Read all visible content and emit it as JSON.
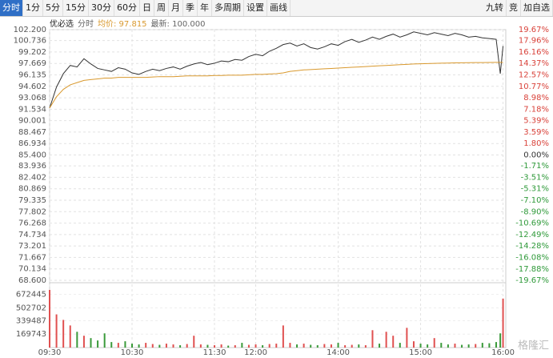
{
  "toolbar": {
    "left": [
      "分时",
      "1分",
      "5分",
      "15分",
      "30分",
      "60分",
      "日",
      "周",
      "月",
      "季",
      "年",
      "多周期",
      "设置",
      "画线"
    ],
    "right": [
      "九转",
      "竞",
      "加自选"
    ]
  },
  "header": {
    "name": "优必选",
    "mode": "分时",
    "avg": "均价: 97.815",
    "last": "最新: 100.000"
  },
  "brand": "格隆汇",
  "chart_data": {
    "type": "line",
    "grid": true,
    "x": [
      0,
      5,
      10,
      15,
      20,
      25,
      30,
      35,
      40,
      45,
      50,
      55,
      60,
      65,
      70,
      75,
      80,
      85,
      90,
      95,
      100,
      105,
      110,
      115,
      120,
      125,
      130,
      135,
      140,
      145,
      150,
      155,
      160,
      165,
      170,
      175,
      180,
      185,
      190,
      195,
      200,
      205,
      210,
      215,
      220,
      225,
      230,
      235,
      240,
      245,
      250,
      255,
      260,
      265,
      270,
      275,
      280,
      285,
      290,
      295,
      300,
      305,
      310,
      315,
      320,
      325,
      328,
      330
    ],
    "xlim": [
      0,
      332
    ],
    "xticks": [
      {
        "value": 0,
        "label": "09:30"
      },
      {
        "value": 60,
        "label": "10:30"
      },
      {
        "value": 120,
        "label": "11:30"
      },
      {
        "value": 150,
        "label": "12:00"
      },
      {
        "value": 210,
        "label": "14:00"
      },
      {
        "value": 270,
        "label": "15:00"
      },
      {
        "value": 330,
        "label": "16:00"
      }
    ],
    "ylim": [
      68.6,
      102.2
    ],
    "yticks": [
      {
        "value": 102.2,
        "label": "102.200"
      },
      {
        "value": 100.736,
        "label": "100.736"
      },
      {
        "value": 99.202,
        "label": "99.202"
      },
      {
        "value": 97.669,
        "label": "97.669"
      },
      {
        "value": 96.135,
        "label": "96.135"
      },
      {
        "value": 94.602,
        "label": "94.602"
      },
      {
        "value": 93.068,
        "label": "93.068"
      },
      {
        "value": 91.534,
        "label": "91.534"
      },
      {
        "value": 90.001,
        "label": "90.001"
      },
      {
        "value": 88.467,
        "label": "88.467"
      },
      {
        "value": 86.934,
        "label": "86.934"
      },
      {
        "value": 85.4,
        "label": "85.400"
      },
      {
        "value": 83.936,
        "label": "83.936"
      },
      {
        "value": 82.402,
        "label": "82.402"
      },
      {
        "value": 80.869,
        "label": "80.869"
      },
      {
        "value": 79.335,
        "label": "79.335"
      },
      {
        "value": 77.802,
        "label": "77.802"
      },
      {
        "value": 76.268,
        "label": "76.268"
      },
      {
        "value": 74.734,
        "label": "74.734"
      },
      {
        "value": 73.201,
        "label": "73.201"
      },
      {
        "value": 71.667,
        "label": "71.667"
      },
      {
        "value": 70.134,
        "label": "70.134"
      },
      {
        "value": 68.6,
        "label": "68.600"
      }
    ],
    "y2lim": [
      -19.67,
      19.67
    ],
    "y2ticks": [
      {
        "value": 19.67,
        "label": "19.67%"
      },
      {
        "value": 17.96,
        "label": "17.96%"
      },
      {
        "value": 16.16,
        "label": "16.16%"
      },
      {
        "value": 14.37,
        "label": "14.37%"
      },
      {
        "value": 12.57,
        "label": "12.57%"
      },
      {
        "value": 10.77,
        "label": "10.77%"
      },
      {
        "value": 8.98,
        "label": "8.98%"
      },
      {
        "value": 7.18,
        "label": "7.18%"
      },
      {
        "value": 5.39,
        "label": "5.39%"
      },
      {
        "value": 3.59,
        "label": "3.59%"
      },
      {
        "value": 1.8,
        "label": "1.80%"
      },
      {
        "value": 0,
        "label": "0.00%"
      },
      {
        "value": -1.71,
        "label": "-1.71%"
      },
      {
        "value": -3.51,
        "label": "-3.51%"
      },
      {
        "value": -5.31,
        "label": "-5.31%"
      },
      {
        "value": -7.1,
        "label": "-7.10%"
      },
      {
        "value": -8.9,
        "label": "-8.90%"
      },
      {
        "value": -10.69,
        "label": "-10.69%"
      },
      {
        "value": -12.49,
        "label": "-12.49%"
      },
      {
        "value": -14.28,
        "label": "-14.28%"
      },
      {
        "value": -16.08,
        "label": "-16.08%"
      },
      {
        "value": -17.88,
        "label": "-17.88%"
      },
      {
        "value": -19.67,
        "label": "-19.67%"
      }
    ],
    "series": [
      {
        "color": "#333333",
        "values": [
          91.7,
          94.5,
          96.3,
          97.4,
          97.2,
          98.3,
          97.6,
          97.0,
          96.8,
          96.6,
          97.1,
          96.9,
          96.4,
          96.2,
          96.6,
          96.9,
          96.7,
          97.0,
          97.2,
          96.9,
          97.3,
          97.6,
          97.8,
          97.5,
          97.7,
          98.0,
          97.9,
          98.2,
          98.1,
          98.6,
          98.9,
          98.7,
          99.3,
          99.7,
          100.2,
          100.4,
          100.0,
          100.3,
          99.8,
          99.6,
          99.9,
          100.3,
          100.1,
          100.6,
          100.9,
          100.5,
          100.8,
          101.2,
          100.9,
          101.3,
          101.6,
          101.2,
          101.5,
          101.9,
          101.7,
          101.5,
          101.8,
          101.6,
          101.4,
          101.7,
          101.5,
          101.2,
          101.3,
          101.1,
          101.0,
          100.9,
          96.3,
          100.0
        ]
      },
      {
        "color": "#d9992e",
        "values": [
          91.7,
          93.2,
          94.2,
          94.8,
          95.1,
          95.4,
          95.5,
          95.6,
          95.7,
          95.7,
          95.8,
          95.8,
          95.8,
          95.8,
          95.8,
          95.85,
          95.9,
          95.9,
          95.9,
          95.95,
          96.0,
          96.0,
          96.0,
          96.0,
          96.05,
          96.05,
          96.1,
          96.1,
          96.1,
          96.15,
          96.2,
          96.2,
          96.25,
          96.3,
          96.4,
          96.6,
          96.7,
          96.8,
          96.85,
          96.9,
          96.95,
          97.0,
          97.05,
          97.1,
          97.15,
          97.2,
          97.25,
          97.3,
          97.35,
          97.4,
          97.45,
          97.5,
          97.55,
          97.6,
          97.62,
          97.65,
          97.68,
          97.7,
          97.72,
          97.74,
          97.76,
          97.77,
          97.78,
          97.79,
          97.8,
          97.81,
          97.812,
          97.815
        ]
      }
    ],
    "volume": {
      "up_color": "#e05050",
      "down_color": "#3a9a3a",
      "ylim": [
        0,
        780000
      ],
      "yticks": [
        672445,
        502702,
        339487,
        169743
      ],
      "values": [
        730000,
        420000,
        350000,
        280000,
        200000,
        150000,
        120000,
        90000,
        180000,
        70000,
        60000,
        80000,
        50000,
        40000,
        60000,
        45000,
        35000,
        50000,
        40000,
        30000,
        45000,
        150000,
        40000,
        35000,
        30000,
        40000,
        25000,
        30000,
        60000,
        35000,
        40000,
        30000,
        45000,
        50000,
        280000,
        60000,
        40000,
        50000,
        35000,
        30000,
        45000,
        40000,
        60000,
        30000,
        35000,
        40000,
        30000,
        220000,
        50000,
        200000,
        150000,
        60000,
        250000,
        80000,
        50000,
        40000,
        120000,
        60000,
        40000,
        50000,
        35000,
        40000,
        45000,
        60000,
        55000,
        70000,
        180000,
        620000
      ]
    }
  }
}
